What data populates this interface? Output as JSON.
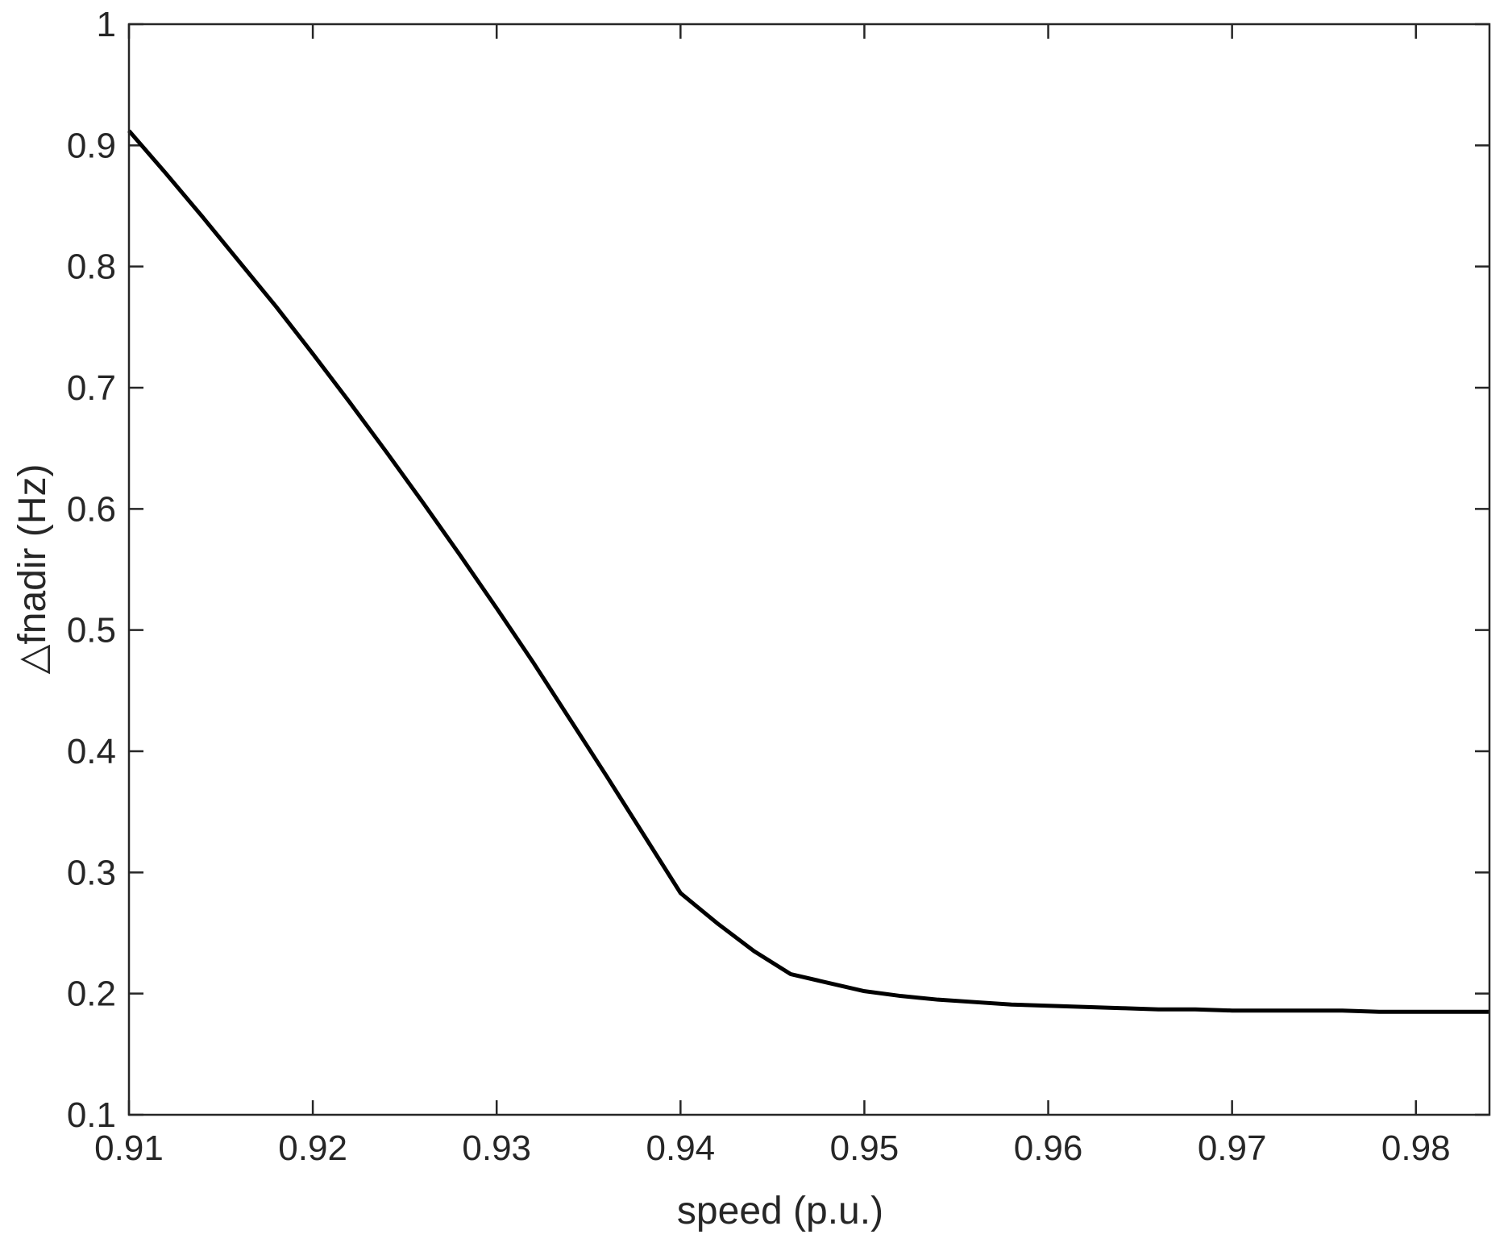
{
  "chart_data": {
    "type": "line",
    "xlabel": "speed (p.u.)",
    "ylabel": "△fnadir (Hz)",
    "xlim": [
      0.91,
      0.984
    ],
    "ylim": [
      0.1,
      1
    ],
    "xticks": [
      0.91,
      0.92,
      0.93,
      0.94,
      0.95,
      0.96,
      0.97,
      0.98
    ],
    "xtick_labels": [
      "0.91",
      "0.92",
      "0.93",
      "0.94",
      "0.95",
      "0.96",
      "0.97",
      "0.98"
    ],
    "yticks": [
      0.1,
      0.2,
      0.3,
      0.4,
      0.5,
      0.6,
      0.7,
      0.8,
      0.9,
      1
    ],
    "ytick_labels": [
      "0.1",
      "0.2",
      "0.3",
      "0.4",
      "0.5",
      "0.6",
      "0.7",
      "0.8",
      "0.9",
      "1"
    ],
    "grid": false,
    "box": true,
    "series": [
      {
        "color": "#000000",
        "x": [
          0.91,
          0.912,
          0.914,
          0.916,
          0.918,
          0.92,
          0.922,
          0.924,
          0.926,
          0.928,
          0.93,
          0.932,
          0.934,
          0.936,
          0.938,
          0.94,
          0.942,
          0.944,
          0.946,
          0.948,
          0.95,
          0.952,
          0.954,
          0.956,
          0.958,
          0.96,
          0.962,
          0.964,
          0.966,
          0.968,
          0.97,
          0.972,
          0.974,
          0.976,
          0.978,
          0.98,
          0.982,
          0.984
        ],
        "y": [
          0.912,
          0.877,
          0.841,
          0.804,
          0.767,
          0.728,
          0.688,
          0.647,
          0.605,
          0.562,
          0.518,
          0.473,
          0.426,
          0.379,
          0.331,
          0.283,
          0.258,
          0.235,
          0.216,
          0.209,
          0.202,
          0.198,
          0.195,
          0.193,
          0.191,
          0.19,
          0.189,
          0.188,
          0.187,
          0.187,
          0.186,
          0.186,
          0.186,
          0.186,
          0.185,
          0.185,
          0.185,
          0.185
        ]
      }
    ]
  }
}
